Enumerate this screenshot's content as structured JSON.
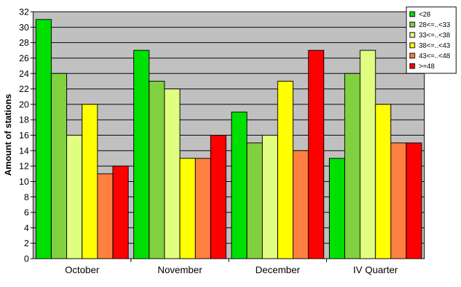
{
  "chart_data": {
    "type": "bar",
    "title": "",
    "xlabel": "",
    "ylabel": "Amount of stations",
    "ylim": [
      0,
      32
    ],
    "ytick_step": 2,
    "grid": true,
    "legend_position": "top-right",
    "plot_background": "#c0c0c0",
    "categories": [
      "October",
      "November",
      "December",
      "IV Quarter"
    ],
    "series": [
      {
        "name": "<28",
        "color": "#00e000",
        "values": [
          31,
          27,
          19,
          13
        ]
      },
      {
        "name": "28<=..<33",
        "color": "#80d040",
        "values": [
          24,
          23,
          15,
          24
        ]
      },
      {
        "name": "33<=..<38",
        "color": "#e0ff80",
        "values": [
          16,
          22,
          16,
          27
        ]
      },
      {
        "name": "38<=..<43",
        "color": "#ffff00",
        "values": [
          20,
          13,
          23,
          20
        ]
      },
      {
        "name": "43<=..<48",
        "color": "#ff8040",
        "values": [
          11,
          13,
          14,
          15
        ]
      },
      {
        "name": ">=48",
        "color": "#ff0000",
        "values": [
          12,
          16,
          27,
          15
        ]
      }
    ]
  }
}
